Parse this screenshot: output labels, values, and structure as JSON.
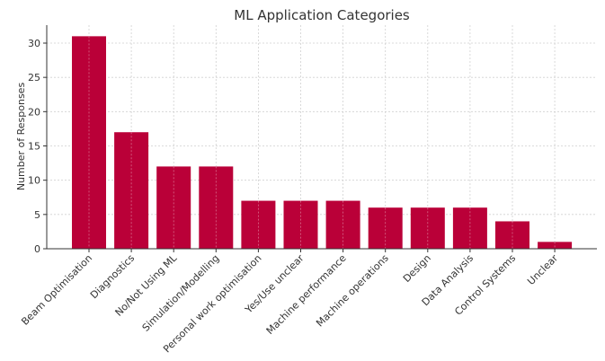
{
  "chart_data": {
    "type": "bar",
    "title": "ML Application Categories",
    "xlabel": "",
    "ylabel": "Number of Responses",
    "categories": [
      "Beam Optimisation",
      "Diagnostics",
      "No/Not Using ML",
      "Simulation/Modelling",
      "Personal work optimisation",
      "Yes/Use unclear",
      "Machine performance",
      "Machine operations",
      "Design",
      "Data Analysis",
      "Control Systems",
      "Unclear"
    ],
    "values": [
      31,
      17,
      12,
      12,
      7,
      7,
      7,
      6,
      6,
      6,
      4,
      1
    ],
    "ylim": [
      0,
      32.5
    ],
    "yticks": [
      0,
      5,
      10,
      15,
      20,
      25,
      30
    ],
    "grid": true,
    "legend": null,
    "bar_color": "#ba0038",
    "x_tick_rotation": 45
  }
}
